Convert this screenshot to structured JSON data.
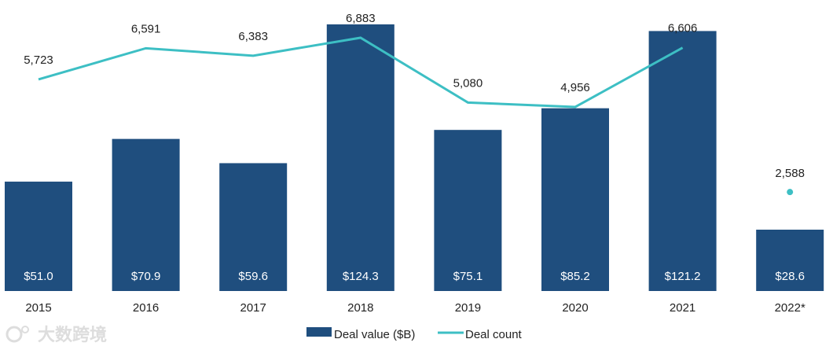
{
  "chart_data": {
    "type": "bar",
    "categories": [
      "2015",
      "2016",
      "2017",
      "2018",
      "2019",
      "2020",
      "2021",
      "2022*"
    ],
    "series": [
      {
        "name": "Deal value ($B)",
        "type": "bar",
        "values": [
          51.0,
          70.9,
          59.6,
          124.3,
          75.1,
          85.2,
          121.2,
          28.6
        ],
        "labels": [
          "$51.0",
          "$70.9",
          "$59.6",
          "$124.3",
          "$75.1",
          "$85.2",
          "$121.2",
          "$28.6"
        ],
        "color": "#1f4e7e"
      },
      {
        "name": "Deal count",
        "type": "line",
        "values": [
          5723,
          6591,
          6383,
          6883,
          5080,
          4956,
          6606,
          2588
        ],
        "labels": [
          "5,723",
          "6,591",
          "6,383",
          "6,883",
          "5,080",
          "4,956",
          "6,606",
          "2,588"
        ],
        "color": "#3dbfc4",
        "note": "2022* shown as separate point"
      }
    ],
    "legend": {
      "position": "bottom",
      "items": [
        "Deal value ($B)",
        "Deal count"
      ]
    },
    "watermark": "大数跨境",
    "grid": false
  }
}
